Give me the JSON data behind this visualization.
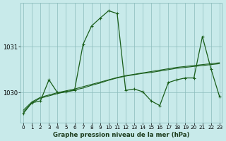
{
  "bg_color": "#c8eaea",
  "grid_color": "#8bbcbc",
  "line_color": "#1a5e1a",
  "title": "Graphe pression niveau de la mer (hPa)",
  "yticks": [
    1030,
    1031
  ],
  "ylim": [
    1029.35,
    1031.95
  ],
  "xlim": [
    -0.3,
    23.3
  ],
  "xticks": [
    0,
    1,
    2,
    3,
    4,
    5,
    6,
    7,
    8,
    9,
    10,
    11,
    12,
    13,
    14,
    15,
    16,
    17,
    18,
    19,
    20,
    21,
    22,
    23
  ],
  "line1_x": [
    0,
    1,
    2,
    3,
    4,
    5,
    6,
    7,
    8,
    9,
    10,
    11,
    12,
    13,
    14,
    15,
    16,
    17,
    18,
    19,
    20,
    21,
    22,
    23
  ],
  "line1_y": [
    1029.55,
    1029.78,
    1029.82,
    1030.28,
    1030.0,
    1030.02,
    1030.05,
    1031.05,
    1031.45,
    1031.62,
    1031.78,
    1031.72,
    1030.05,
    1030.08,
    1030.02,
    1029.82,
    1029.72,
    1030.22,
    1030.28,
    1030.32,
    1030.32,
    1031.22,
    1030.52,
    1029.92
  ],
  "line2_x": [
    0,
    1,
    2,
    3,
    4,
    5,
    6,
    7,
    8,
    9,
    10,
    11,
    12,
    13,
    14,
    15,
    16,
    17,
    18,
    19,
    20,
    21,
    22,
    23
  ],
  "line2_y": [
    1029.58,
    1029.78,
    1029.88,
    1029.93,
    1029.98,
    1030.02,
    1030.06,
    1030.1,
    1030.16,
    1030.21,
    1030.27,
    1030.32,
    1030.36,
    1030.39,
    1030.42,
    1030.44,
    1030.47,
    1030.5,
    1030.53,
    1030.55,
    1030.57,
    1030.59,
    1030.61,
    1030.63
  ],
  "line3_x": [
    0,
    1,
    2,
    3,
    4,
    5,
    6,
    7,
    8,
    9,
    10,
    11,
    12,
    13,
    14,
    15,
    16,
    17,
    18,
    19,
    20,
    21,
    22,
    23
  ],
  "line3_y": [
    1029.62,
    1029.8,
    1029.9,
    1029.95,
    1030.0,
    1030.04,
    1030.08,
    1030.13,
    1030.18,
    1030.23,
    1030.28,
    1030.33,
    1030.37,
    1030.4,
    1030.43,
    1030.46,
    1030.49,
    1030.52,
    1030.55,
    1030.57,
    1030.59,
    1030.61,
    1030.63,
    1030.65
  ]
}
